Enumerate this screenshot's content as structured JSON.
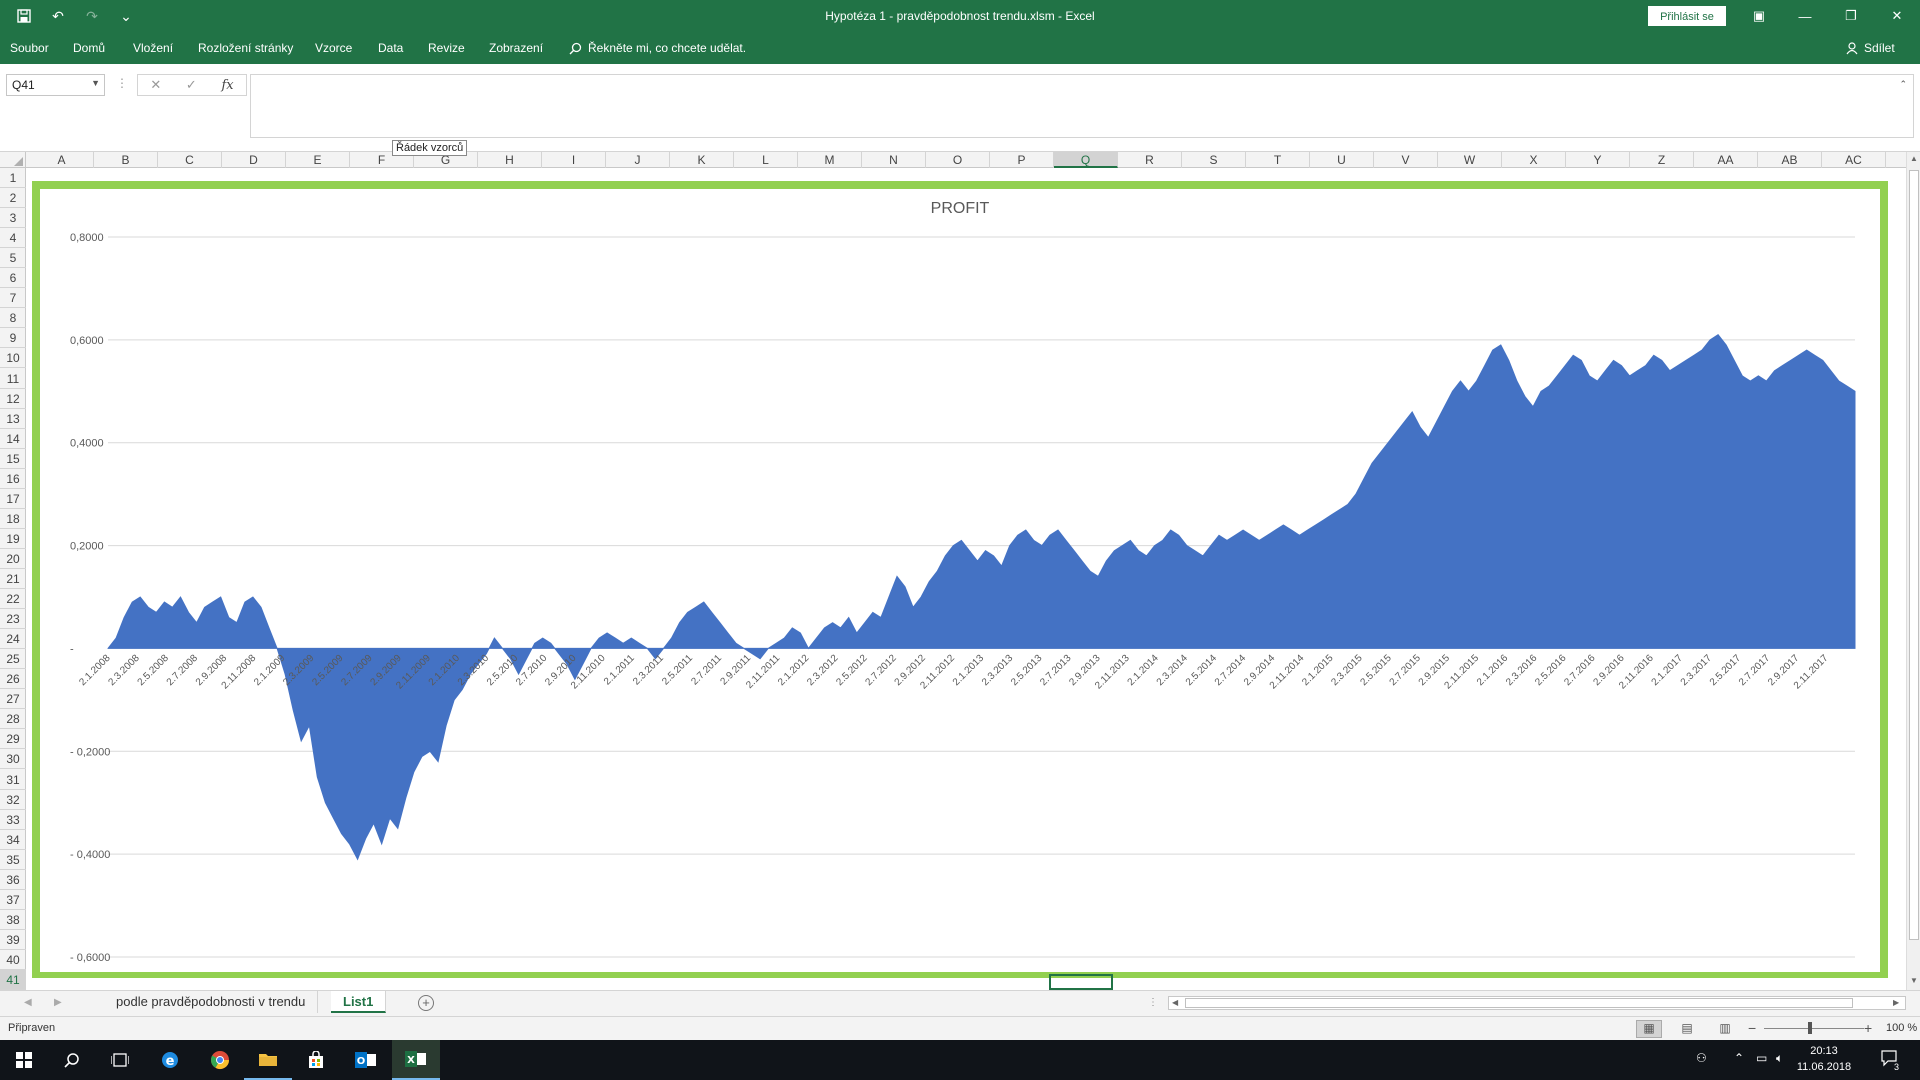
{
  "app": {
    "window_title": "Hypotéza 1 - pravděpodobnost  trendu.xlsm  -  Excel",
    "signin_label": "Přihlásit se"
  },
  "ribbon": {
    "tabs": [
      "Soubor",
      "Domů",
      "Vložení",
      "Rozložení stránky",
      "Vzorce",
      "Data",
      "Revize",
      "Zobrazení"
    ],
    "tell_me": "Řekněte mi, co chcete udělat.",
    "share": "Sdílet"
  },
  "formula_bar": {
    "name_box": "Q41",
    "formula": "",
    "tooltip": "Řádek vzorců"
  },
  "grid": {
    "columns": [
      "A",
      "B",
      "C",
      "D",
      "E",
      "F",
      "G",
      "H",
      "I",
      "J",
      "K",
      "L",
      "M",
      "N",
      "O",
      "P",
      "Q",
      "R",
      "S",
      "T",
      "U",
      "V",
      "W",
      "X",
      "Y",
      "Z",
      "AA",
      "AB",
      "AC"
    ],
    "rows": [
      "1",
      "2",
      "3",
      "4",
      "5",
      "6",
      "7",
      "8",
      "9",
      "10",
      "11",
      "12",
      "13",
      "14",
      "15",
      "16",
      "17",
      "18",
      "19",
      "20",
      "21",
      "22",
      "23",
      "24",
      "25",
      "26",
      "27",
      "28",
      "29",
      "30",
      "31",
      "32",
      "33",
      "34",
      "35",
      "36",
      "37",
      "38",
      "39",
      "40",
      "41"
    ],
    "selected_column": "Q",
    "selected_row": "41"
  },
  "chart_data": {
    "type": "area",
    "title": "PROFIT",
    "color": "#4472c4",
    "border_color": "#92d050",
    "ylim": [
      -0.6,
      0.8
    ],
    "yticks": [
      "0,8000",
      "0,6000",
      "0,4000",
      "0,2000",
      "-",
      "- 0,2000",
      "- 0,4000",
      "- 0,6000"
    ],
    "grid": true,
    "xlabels": [
      "2.1.2008",
      "2.3.2008",
      "2.5.2008",
      "2.7.2008",
      "2.9.2008",
      "2.11.2008",
      "2.1.2009",
      "2.3.2009",
      "2.5.2009",
      "2.7.2009",
      "2.9.2009",
      "2.11.2009",
      "2.1.2010",
      "2.3.2010",
      "2.5.2010",
      "2.7.2010",
      "2.9.2010",
      "2.11.2010",
      "2.1.2011",
      "2.3.2011",
      "2.5.2011",
      "2.7.2011",
      "2.9.2011",
      "2.11.2011",
      "2.1.2012",
      "2.3.2012",
      "2.5.2012",
      "2.7.2012",
      "2.9.2012",
      "2.11.2012",
      "2.1.2013",
      "2.3.2013",
      "2.5.2013",
      "2.7.2013",
      "2.9.2013",
      "2.11.2013",
      "2.1.2014",
      "2.3.2014",
      "2.5.2014",
      "2.7.2014",
      "2.9.2014",
      "2.11.2014",
      "2.1.2015",
      "2.3.2015",
      "2.5.2015",
      "2.7.2015",
      "2.9.2015",
      "2.11.2015",
      "2.1.2016",
      "2.3.2016",
      "2.5.2016",
      "2.7.2016",
      "2.9.2016",
      "2.11.2016",
      "2.1.2017",
      "2.3.2017",
      "2.5.2017",
      "2.7.2017",
      "2.9.2017",
      "2.11.2017"
    ],
    "values": [
      0.0,
      0.02,
      0.06,
      0.09,
      0.1,
      0.08,
      0.07,
      0.09,
      0.08,
      0.1,
      0.07,
      0.05,
      0.08,
      0.09,
      0.1,
      0.06,
      0.05,
      0.09,
      0.1,
      0.08,
      0.04,
      0.0,
      -0.05,
      -0.12,
      -0.18,
      -0.15,
      -0.25,
      -0.3,
      -0.33,
      -0.36,
      -0.38,
      -0.41,
      -0.37,
      -0.34,
      -0.38,
      -0.33,
      -0.35,
      -0.29,
      -0.24,
      -0.21,
      -0.2,
      -0.22,
      -0.15,
      -0.1,
      -0.08,
      -0.05,
      -0.03,
      -0.01,
      0.02,
      0.0,
      -0.02,
      -0.05,
      -0.02,
      0.01,
      0.02,
      0.01,
      -0.01,
      -0.03,
      -0.06,
      -0.03,
      0.0,
      0.02,
      0.03,
      0.02,
      0.01,
      0.02,
      0.01,
      0.0,
      -0.02,
      0.0,
      0.02,
      0.05,
      0.07,
      0.08,
      0.09,
      0.07,
      0.05,
      0.03,
      0.01,
      0.0,
      -0.01,
      -0.02,
      0.0,
      0.01,
      0.02,
      0.04,
      0.03,
      0.0,
      0.02,
      0.04,
      0.05,
      0.04,
      0.06,
      0.03,
      0.05,
      0.07,
      0.06,
      0.1,
      0.14,
      0.12,
      0.08,
      0.1,
      0.13,
      0.15,
      0.18,
      0.2,
      0.21,
      0.19,
      0.17,
      0.19,
      0.18,
      0.16,
      0.2,
      0.22,
      0.23,
      0.21,
      0.2,
      0.22,
      0.23,
      0.21,
      0.19,
      0.17,
      0.15,
      0.14,
      0.17,
      0.19,
      0.2,
      0.21,
      0.19,
      0.18,
      0.2,
      0.21,
      0.23,
      0.22,
      0.2,
      0.19,
      0.18,
      0.2,
      0.22,
      0.21,
      0.22,
      0.23,
      0.22,
      0.21,
      0.22,
      0.23,
      0.24,
      0.23,
      0.22,
      0.23,
      0.24,
      0.25,
      0.26,
      0.27,
      0.28,
      0.3,
      0.33,
      0.36,
      0.38,
      0.4,
      0.42,
      0.44,
      0.46,
      0.43,
      0.41,
      0.44,
      0.47,
      0.5,
      0.52,
      0.5,
      0.52,
      0.55,
      0.58,
      0.59,
      0.56,
      0.52,
      0.49,
      0.47,
      0.5,
      0.51,
      0.53,
      0.55,
      0.57,
      0.56,
      0.53,
      0.52,
      0.54,
      0.56,
      0.55,
      0.53,
      0.54,
      0.55,
      0.57,
      0.56,
      0.54,
      0.55,
      0.56,
      0.57,
      0.58,
      0.6,
      0.61,
      0.59,
      0.56,
      0.53,
      0.52,
      0.53,
      0.52,
      0.54,
      0.55,
      0.56,
      0.57,
      0.58,
      0.57,
      0.56,
      0.54,
      0.52,
      0.51,
      0.5
    ]
  },
  "sheets": {
    "tabs": [
      "podle pravděpodobnosti v trendu",
      "List1"
    ],
    "active": "List1"
  },
  "status": {
    "text": "Připraven",
    "zoom": "100 %"
  },
  "taskbar": {
    "clock_time": "20:13",
    "clock_date": "11.06.2018",
    "notifications": "3"
  }
}
